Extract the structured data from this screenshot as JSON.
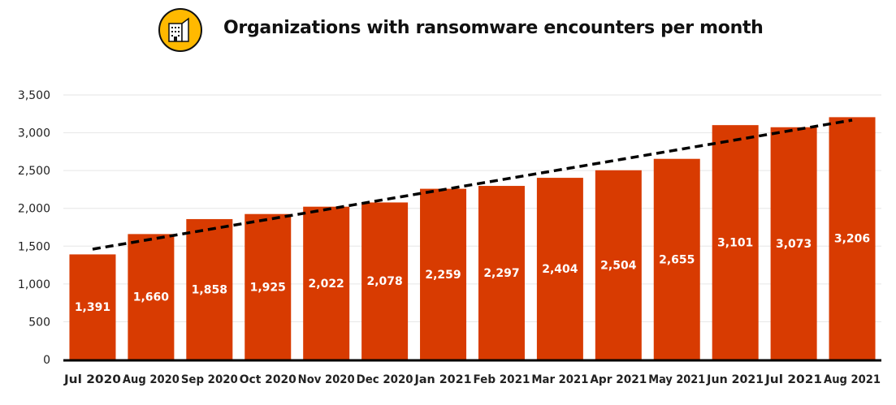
{
  "title": "Organizations with ransomware encounters per month",
  "icon": "building-icon",
  "colors": {
    "bar": "#D83B01",
    "icon_bg": "#FFB900",
    "trend": "#000000",
    "grid": "#e6e6e6",
    "label": "#ffffff"
  },
  "chart_data": {
    "type": "bar",
    "title": "Organizations with ransomware encounters per month",
    "categories": [
      "Jul 2020",
      "Aug 2020",
      "Sep 2020",
      "Oct 2020",
      "Nov 2020",
      "Dec 2020",
      "Jan 2021",
      "Feb 2021",
      "Mar 2021",
      "Apr 2021",
      "May 2021",
      "Jun 2021",
      "Jul 2021",
      "Aug 2021"
    ],
    "values": [
      1391,
      1660,
      1858,
      1925,
      2022,
      2078,
      2259,
      2297,
      2404,
      2504,
      2655,
      3101,
      3073,
      3206
    ],
    "data_labels": [
      "1,391",
      "1,660",
      "1,858",
      "1,925",
      "2,022",
      "2,078",
      "2,259",
      "2,297",
      "2,404",
      "2,504",
      "2,655",
      "3,101",
      "3,073",
      "3,206"
    ],
    "ylim": [
      0,
      3500
    ],
    "yticks": [
      0,
      500,
      1000,
      1500,
      2000,
      2500,
      3000,
      3500
    ],
    "ytick_labels": [
      "0",
      "500",
      "1,000",
      "1,500",
      "2,000",
      "2,500",
      "3,000",
      "3,500"
    ],
    "grid": true,
    "trendline": {
      "type": "linear",
      "style": "dashed",
      "start": 1460,
      "end": 3167
    },
    "xlabel": "",
    "ylabel": ""
  }
}
